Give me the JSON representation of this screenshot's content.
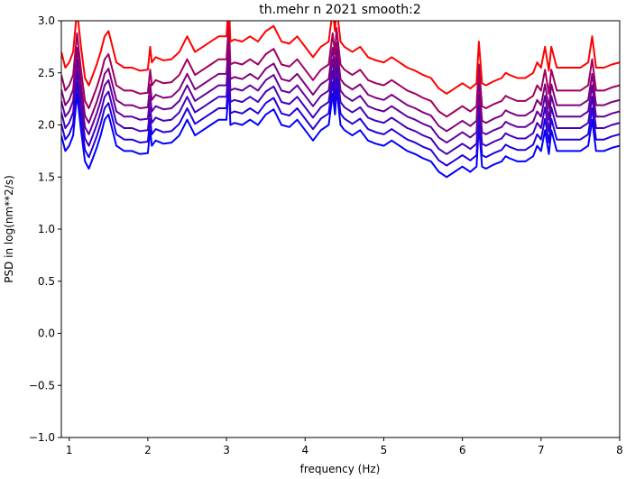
{
  "chart_data": {
    "type": "line",
    "title": "th.mehr n 2021 smooth:2",
    "xlabel": "frequency (Hz)",
    "ylabel": "PSD in log(nm**2/s)",
    "xlim": [
      0.9,
      8.0
    ],
    "ylim": [
      -1.0,
      3.0
    ],
    "x_ticks": [
      1,
      2,
      3,
      4,
      5,
      6,
      7,
      8
    ],
    "x_tick_labels": [
      "1",
      "2",
      "3",
      "4",
      "5",
      "6",
      "7",
      "8"
    ],
    "y_ticks": [
      -1.0,
      -0.5,
      0.0,
      0.5,
      1.0,
      1.5,
      2.0,
      2.5,
      3.0
    ],
    "y_tick_labels": [
      "−1.0",
      "−0.5",
      "0.0",
      "0.5",
      "1.0",
      "1.5",
      "2.0",
      "2.5",
      "3.0"
    ],
    "grid": false,
    "legend": "none",
    "base_curve": {
      "x": [
        0.9,
        0.95,
        1.0,
        1.05,
        1.1,
        1.15,
        1.2,
        1.25,
        1.3,
        1.35,
        1.4,
        1.45,
        1.5,
        1.55,
        1.6,
        1.7,
        1.8,
        1.9,
        2.0,
        2.03,
        2.05,
        2.1,
        2.2,
        2.3,
        2.4,
        2.5,
        2.6,
        2.7,
        2.8,
        2.9,
        3.0,
        3.03,
        3.05,
        3.1,
        3.2,
        3.3,
        3.4,
        3.5,
        3.6,
        3.7,
        3.8,
        3.9,
        4.0,
        4.1,
        4.2,
        4.3,
        4.35,
        4.38,
        4.4,
        4.45,
        4.5,
        4.6,
        4.7,
        4.8,
        4.9,
        5.0,
        5.1,
        5.2,
        5.3,
        5.4,
        5.5,
        5.6,
        5.7,
        5.8,
        5.9,
        6.0,
        6.1,
        6.18,
        6.21,
        6.25,
        6.3,
        6.4,
        6.5,
        6.55,
        6.6,
        6.7,
        6.8,
        6.9,
        6.95,
        7.0,
        7.05,
        7.1,
        7.13,
        7.2,
        7.3,
        7.4,
        7.5,
        7.6,
        7.65,
        7.7,
        7.8,
        7.9,
        8.0
      ],
      "y": [
        1.9,
        1.75,
        1.8,
        1.9,
        2.3,
        1.95,
        1.65,
        1.58,
        1.68,
        1.78,
        1.9,
        2.05,
        2.1,
        1.95,
        1.8,
        1.75,
        1.75,
        1.72,
        1.73,
        1.95,
        1.8,
        1.85,
        1.82,
        1.83,
        1.9,
        2.05,
        1.9,
        1.95,
        2.0,
        2.05,
        2.05,
        2.4,
        2.0,
        2.02,
        2.0,
        2.05,
        2.0,
        2.1,
        2.15,
        2.0,
        1.98,
        2.05,
        1.95,
        1.85,
        1.95,
        2.0,
        2.3,
        2.1,
        2.35,
        2.0,
        1.95,
        1.9,
        1.95,
        1.85,
        1.82,
        1.8,
        1.85,
        1.8,
        1.75,
        1.72,
        1.68,
        1.65,
        1.55,
        1.5,
        1.55,
        1.6,
        1.55,
        1.6,
        2.0,
        1.6,
        1.58,
        1.62,
        1.65,
        1.7,
        1.68,
        1.65,
        1.65,
        1.7,
        1.8,
        1.75,
        1.95,
        1.72,
        1.95,
        1.75,
        1.75,
        1.75,
        1.75,
        1.8,
        2.05,
        1.75,
        1.75,
        1.78,
        1.8
      ]
    },
    "series": [
      {
        "offset": 0.0,
        "color": "#0000ff"
      },
      {
        "offset": 0.11,
        "color": "#2000df"
      },
      {
        "offset": 0.22,
        "color": "#4000bf"
      },
      {
        "offset": 0.33,
        "color": "#60009f"
      },
      {
        "offset": 0.44,
        "color": "#80007f"
      },
      {
        "offset": 0.58,
        "color": "#a0005f"
      },
      {
        "offset": 0.8,
        "color": "#ff0000"
      }
    ]
  }
}
